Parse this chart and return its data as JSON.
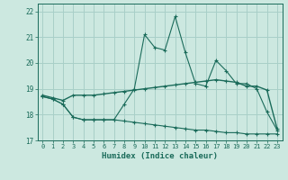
{
  "xlabel": "Humidex (Indice chaleur)",
  "xlim": [
    -0.5,
    23.5
  ],
  "ylim": [
    17.0,
    22.3
  ],
  "yticks": [
    17,
    18,
    19,
    20,
    21,
    22
  ],
  "xticks": [
    0,
    1,
    2,
    3,
    4,
    5,
    6,
    7,
    8,
    9,
    10,
    11,
    12,
    13,
    14,
    15,
    16,
    17,
    18,
    19,
    20,
    21,
    22,
    23
  ],
  "bg_color": "#cce8e0",
  "grid_color": "#a8cfc8",
  "line_color": "#1a6b5a",
  "line_upper": [
    18.7,
    18.6,
    18.4,
    17.9,
    17.8,
    17.8,
    17.8,
    17.8,
    18.4,
    19.0,
    21.1,
    20.6,
    20.5,
    21.8,
    20.4,
    19.2,
    19.1,
    20.1,
    19.7,
    19.2,
    19.2,
    19.0,
    18.1,
    17.4
  ],
  "line_mean": [
    18.75,
    18.65,
    18.55,
    18.75,
    18.75,
    18.75,
    18.8,
    18.85,
    18.9,
    18.95,
    19.0,
    19.05,
    19.1,
    19.15,
    19.2,
    19.25,
    19.3,
    19.35,
    19.3,
    19.25,
    19.1,
    19.1,
    18.95,
    17.45
  ],
  "line_lower": [
    18.7,
    18.6,
    18.4,
    17.9,
    17.8,
    17.8,
    17.8,
    17.8,
    17.75,
    17.7,
    17.65,
    17.6,
    17.55,
    17.5,
    17.45,
    17.4,
    17.4,
    17.35,
    17.3,
    17.3,
    17.25,
    17.25,
    17.25,
    17.25
  ]
}
